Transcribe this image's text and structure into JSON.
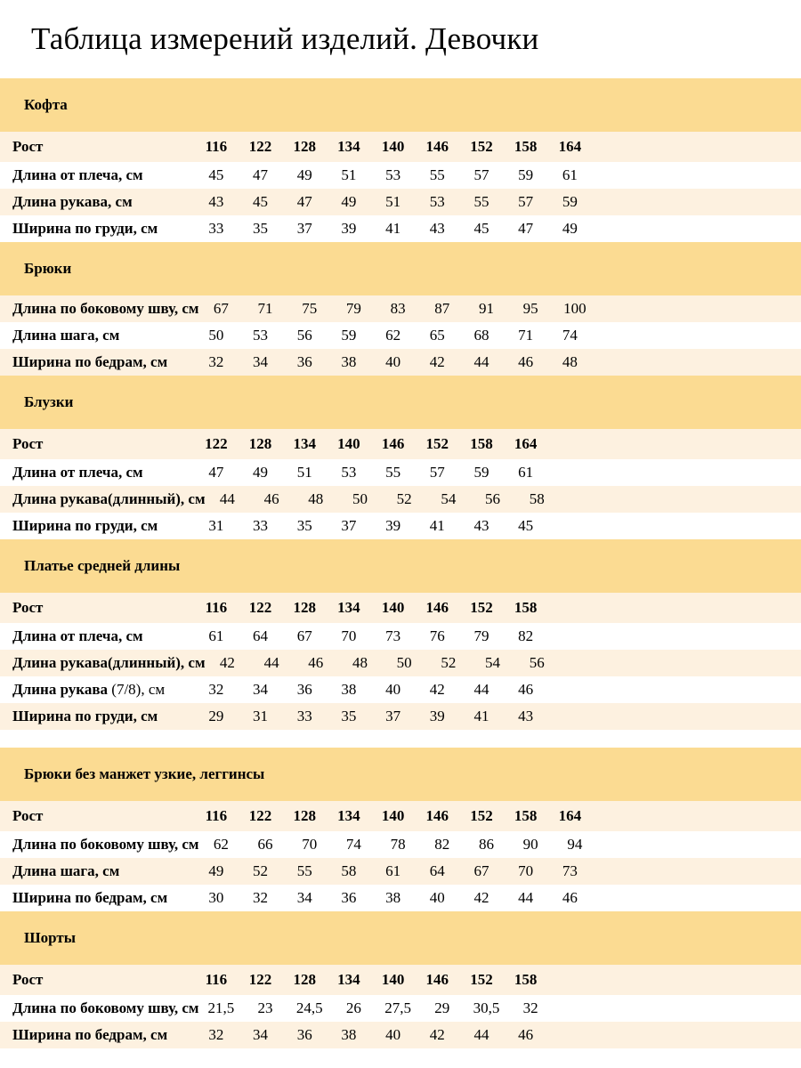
{
  "title": "Таблица измерений изделий. Девочки",
  "colors": {
    "band": "#fbdb92",
    "stripe": "#fdf1e0",
    "background": "#ffffff",
    "text": "#000000"
  },
  "sections": [
    {
      "name": "Кофта",
      "gap_before": false,
      "rows": [
        {
          "label": "Рост",
          "header": true,
          "values": [
            "116",
            "122",
            "128",
            "134",
            "140",
            "146",
            "152",
            "158",
            "164"
          ]
        },
        {
          "label": "Длина от плеча, см",
          "values": [
            "45",
            "47",
            "49",
            "51",
            "53",
            "55",
            "57",
            "59",
            "61"
          ]
        },
        {
          "label": "Длина рукава, см",
          "values": [
            "43",
            "45",
            "47",
            "49",
            "51",
            "53",
            "55",
            "57",
            "59"
          ]
        },
        {
          "label": "Ширина по груди, см",
          "values": [
            "33",
            "35",
            "37",
            "39",
            "41",
            "43",
            "45",
            "47",
            "49"
          ]
        }
      ]
    },
    {
      "name": "Брюки",
      "gap_before": false,
      "rows": [
        {
          "label": "Длина по боковому шву, см",
          "values": [
            "67",
            "71",
            "75",
            "79",
            "83",
            "87",
            "91",
            "95",
            "100"
          ]
        },
        {
          "label": "Длина шага, см",
          "values": [
            "50",
            "53",
            "56",
            "59",
            "62",
            "65",
            "68",
            "71",
            "74"
          ]
        },
        {
          "label": "Ширина по бедрам, см",
          "values": [
            "32",
            "34",
            "36",
            "38",
            "40",
            "42",
            "44",
            "46",
            "48"
          ]
        }
      ]
    },
    {
      "name": "Блузки",
      "gap_before": false,
      "rows": [
        {
          "label": "Рост",
          "header": true,
          "values": [
            "122",
            "128",
            "134",
            "140",
            "146",
            "152",
            "158",
            "164"
          ]
        },
        {
          "label": "Длина от плеча, см",
          "values": [
            "47",
            "49",
            "51",
            "53",
            "55",
            "57",
            "59",
            "61"
          ]
        },
        {
          "label": "Длина рукава(длинный), см",
          "values": [
            "44",
            "46",
            "48",
            "50",
            "52",
            "54",
            "56",
            "58"
          ]
        },
        {
          "label": "Ширина по груди, см",
          "values": [
            "31",
            "33",
            "35",
            "37",
            "39",
            "41",
            "43",
            "45"
          ]
        }
      ]
    },
    {
      "name": "Платье средней длины",
      "gap_before": false,
      "rows": [
        {
          "label": "Рост",
          "header": true,
          "values": [
            "116",
            "122",
            "128",
            "134",
            "140",
            "146",
            "152",
            "158"
          ]
        },
        {
          "label": "Длина от плеча, см",
          "values": [
            "61",
            "64",
            "67",
            "70",
            "73",
            "76",
            "79",
            "82"
          ]
        },
        {
          "label": "Длина рукава(длинный), см",
          "values": [
            "42",
            "44",
            "46",
            "48",
            "50",
            "52",
            "54",
            "56"
          ]
        },
        {
          "label": "Длина рукава",
          "label_suffix": " (7/8), см",
          "values": [
            "32",
            "34",
            "36",
            "38",
            "40",
            "42",
            "44",
            "46"
          ]
        },
        {
          "label": "Ширина по груди, см",
          "values": [
            "29",
            "31",
            "33",
            "35",
            "37",
            "39",
            "41",
            "43"
          ]
        }
      ]
    },
    {
      "name": "Брюки без манжет узкие, леггинсы",
      "gap_before": true,
      "rows": [
        {
          "label": "Рост",
          "header": true,
          "values": [
            "116",
            "122",
            "128",
            "134",
            "140",
            "146",
            "152",
            "158",
            "164"
          ]
        },
        {
          "label": "Длина по боковому шву, см",
          "values": [
            "62",
            "66",
            "70",
            "74",
            "78",
            "82",
            "86",
            "90",
            "94"
          ]
        },
        {
          "label": "Длина шага, см",
          "values": [
            "49",
            "52",
            "55",
            "58",
            "61",
            "64",
            "67",
            "70",
            "73"
          ]
        },
        {
          "label": "Ширина по бедрам, см",
          "values": [
            "30",
            "32",
            "34",
            "36",
            "38",
            "40",
            "42",
            "44",
            "46"
          ]
        }
      ]
    },
    {
      "name": "Шорты",
      "gap_before": false,
      "rows": [
        {
          "label": "Рост",
          "header": true,
          "values": [
            "116",
            "122",
            "128",
            "134",
            "140",
            "146",
            "152",
            "158"
          ]
        },
        {
          "label": "Длина по боковому шву, см",
          "values": [
            "21,5",
            "23",
            "24,5",
            "26",
            "27,5",
            "29",
            "30,5",
            "32"
          ]
        },
        {
          "label": "Ширина по бедрам, см",
          "values": [
            "32",
            "34",
            "36",
            "38",
            "40",
            "42",
            "44",
            "46"
          ]
        }
      ]
    }
  ]
}
